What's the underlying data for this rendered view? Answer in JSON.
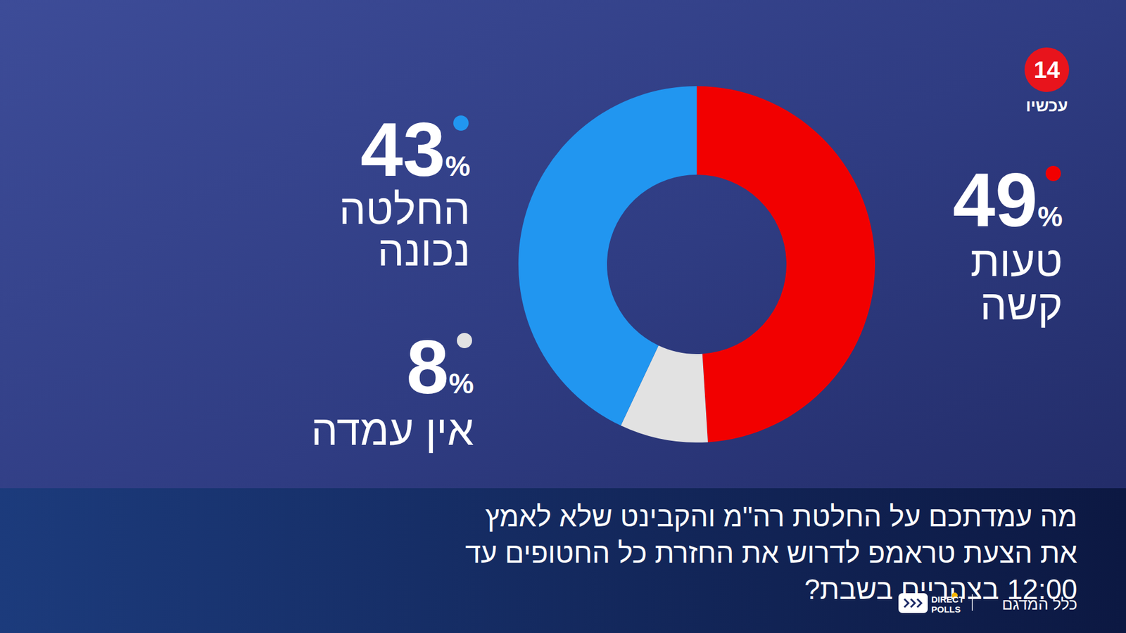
{
  "chart_data": {
    "type": "donut",
    "title": "מה עמדתכם על החלטת רה\"מ והקבינט שלא לאמץ את הצעת טראמפ לדרוש את החזרת כל החטופים עד 12:00 בצהריים בשבת?",
    "categories": [
      "טעות קשה",
      "אין עמדה",
      "החלטה נכונה"
    ],
    "values": [
      49,
      8,
      43
    ],
    "value_labels": [
      "49%",
      "8%",
      "43%"
    ],
    "colors": [
      "#f20000",
      "#e2e2e2",
      "#2196f0"
    ],
    "data_labels": true,
    "annotations": [
      "14",
      "עכשיו",
      "כלל המדגם",
      "DIRECT POLLS"
    ]
  }
}
